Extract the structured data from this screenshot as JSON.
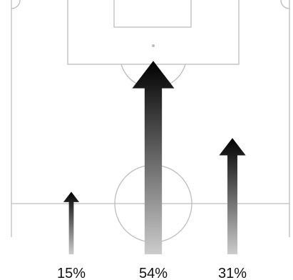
{
  "chart_data": {
    "type": "arrow",
    "values": [
      15,
      54,
      31
    ],
    "value_labels": [
      "15%",
      "54%",
      "31%"
    ],
    "color_top": "#000000",
    "color_bottom": "#cccccc"
  }
}
